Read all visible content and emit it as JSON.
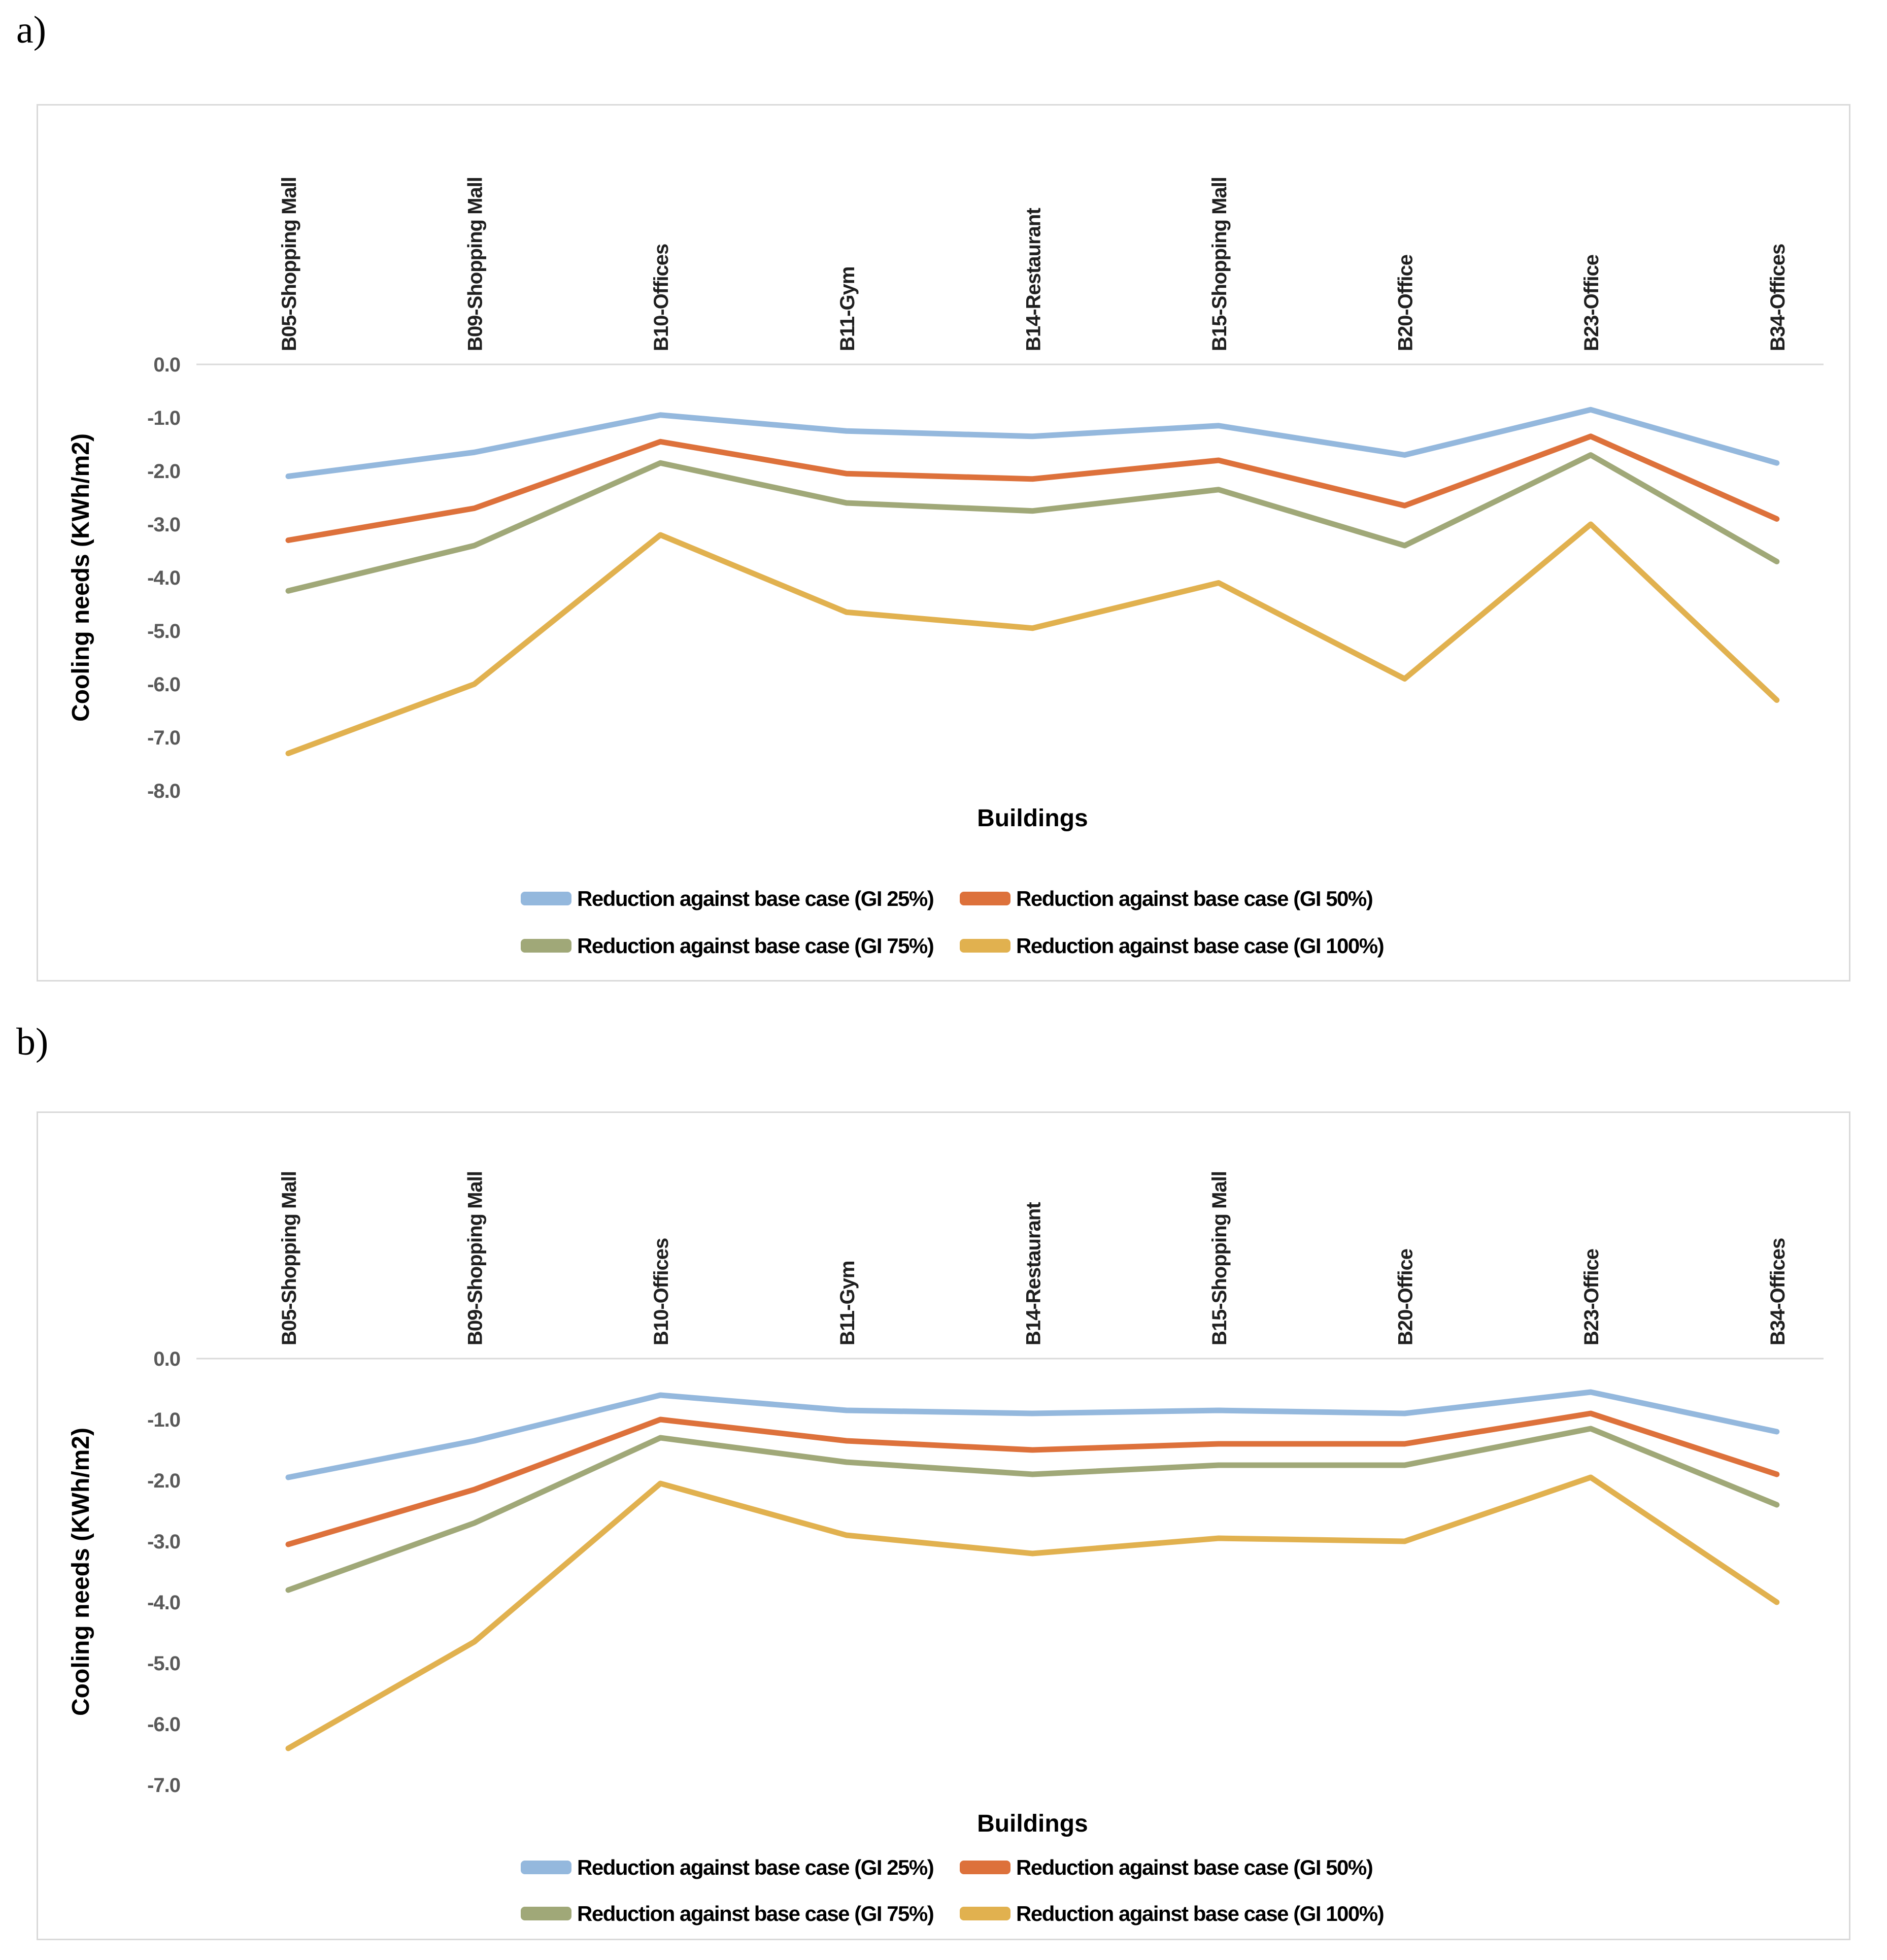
{
  "page": {
    "panel_a_label": "a)",
    "panel_b_label": "b)"
  },
  "chart_data": [
    {
      "id": "a",
      "type": "line",
      "title": "",
      "xlabel": "Buildings",
      "ylabel": "Cooling needs (KWh/m2)",
      "ylim": [
        -8.0,
        0.0
      ],
      "ytick_step": 1.0,
      "ytick_labels": [
        "0.0",
        "-1.0",
        "-2.0",
        "-3.0",
        "-4.0",
        "-5.0",
        "-6.0",
        "-7.0",
        "-8.0"
      ],
      "grid": "zero-line-only",
      "legend_position": "bottom",
      "categories": [
        "B05-Shopping Mall",
        "B09-Shopping Mall",
        "B10-Offices",
        "B11-Gym",
        "B14-Restaurant",
        "B15-Shopping Mall",
        "B20-Office",
        "B23-Office",
        "B34-Offices"
      ],
      "series": [
        {
          "name": "Reduction against base case (GI 25%)",
          "color": "#94b8dd",
          "values": [
            -2.1,
            -1.65,
            -0.95,
            -1.25,
            -1.35,
            -1.15,
            -1.7,
            -0.85,
            -1.85
          ]
        },
        {
          "name": "Reduction against base case (GI 50%)",
          "color": "#dd713b",
          "values": [
            -3.3,
            -2.7,
            -1.45,
            -2.05,
            -2.15,
            -1.8,
            -2.65,
            -1.35,
            -2.9
          ]
        },
        {
          "name": "Reduction against base case (GI 75%)",
          "color": "#a0a878",
          "values": [
            -4.25,
            -3.4,
            -1.85,
            -2.6,
            -2.75,
            -2.35,
            -3.4,
            -1.7,
            -3.7
          ]
        },
        {
          "name": "Reduction against base case (GI 100%)",
          "color": "#e1b14f",
          "values": [
            -7.3,
            -6.0,
            -3.2,
            -4.65,
            -4.95,
            -4.1,
            -5.9,
            -3.0,
            -6.3
          ]
        }
      ]
    },
    {
      "id": "b",
      "type": "line",
      "title": "",
      "xlabel": "Buildings",
      "ylabel": "Cooling needs (KWh/m2)",
      "ylim": [
        -7.0,
        0.0
      ],
      "ytick_step": 1.0,
      "ytick_labels": [
        "0.0",
        "-1.0",
        "-2.0",
        "-3.0",
        "-4.0",
        "-5.0",
        "-6.0",
        "-7.0"
      ],
      "grid": "zero-line-only",
      "legend_position": "bottom",
      "categories": [
        "B05-Shopping Mall",
        "B09-Shopping Mall",
        "B10-Offices",
        "B11-Gym",
        "B14-Restaurant",
        "B15-Shopping Mall",
        "B20-Office",
        "B23-Office",
        "B34-Offices"
      ],
      "series": [
        {
          "name": "Reduction against base case (GI 25%)",
          "color": "#94b8dd",
          "values": [
            -1.95,
            -1.35,
            -0.6,
            -0.85,
            -0.9,
            -0.85,
            -0.9,
            -0.55,
            -1.2
          ]
        },
        {
          "name": "Reduction against base case (GI 50%)",
          "color": "#dd713b",
          "values": [
            -3.05,
            -2.15,
            -1.0,
            -1.35,
            -1.5,
            -1.4,
            -1.4,
            -0.9,
            -1.9
          ]
        },
        {
          "name": "Reduction against base case (GI 75%)",
          "color": "#a0a878",
          "values": [
            -3.8,
            -2.7,
            -1.3,
            -1.7,
            -1.9,
            -1.75,
            -1.75,
            -1.15,
            -2.4
          ]
        },
        {
          "name": "Reduction against base case (GI 100%)",
          "color": "#e1b14f",
          "values": [
            -6.4,
            -4.65,
            -2.05,
            -2.9,
            -3.2,
            -2.95,
            -3.0,
            -1.95,
            -4.0
          ]
        }
      ]
    }
  ]
}
